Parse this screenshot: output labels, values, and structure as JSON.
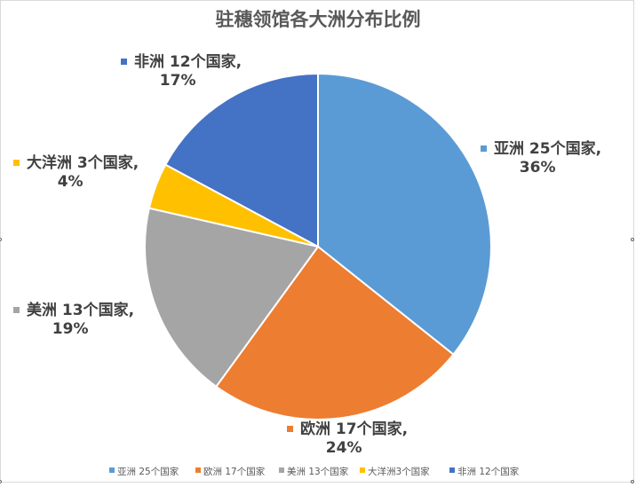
{
  "chart_data": {
    "type": "pie",
    "title": "驻穗领馆各大洲分布比例",
    "slices": [
      {
        "name": "亚洲",
        "count": 25,
        "label_count": "25个国家,",
        "percent": 36,
        "percent_label": "36%",
        "legend": "亚洲 25个国家",
        "color": "#5b9bd5"
      },
      {
        "name": "欧洲",
        "count": 17,
        "label_count": "17个国家,",
        "percent": 24,
        "percent_label": "24%",
        "legend": "欧洲 17个国家",
        "color": "#ed7d31"
      },
      {
        "name": "美洲",
        "count": 13,
        "label_count": "13个国家,",
        "percent": 19,
        "percent_label": "19%",
        "legend": "美洲 13个国家",
        "color": "#a5a5a5"
      },
      {
        "name": "大洋洲",
        "count": 3,
        "label_count": "3个国家,",
        "percent": 4,
        "percent_label": "4%",
        "legend": "大洋洲3个国家",
        "color": "#ffc000"
      },
      {
        "name": "非洲",
        "count": 12,
        "label_count": "12个国家,",
        "percent": 17,
        "percent_label": "17%",
        "legend": "非洲 12个国家",
        "color": "#4472c4"
      }
    ],
    "legend_position": "bottom"
  }
}
